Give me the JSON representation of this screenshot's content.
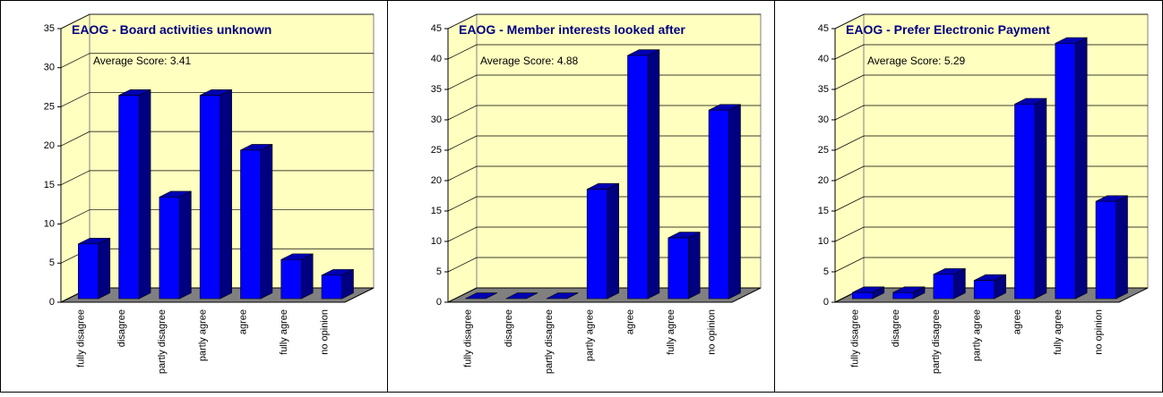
{
  "chart_data": [
    {
      "type": "bar",
      "title": "EAOG - Board activities unknown",
      "annotation": "Average Score: 3.41",
      "categories": [
        "fully disagree",
        "disagree",
        "partly disagree",
        "partly agree",
        "agree",
        "fully agree",
        "no opinion"
      ],
      "values": [
        7,
        26,
        13,
        26,
        19,
        5,
        3
      ],
      "color": "#0000ff",
      "ylim": [
        0,
        35
      ],
      "yticks": [
        0,
        5,
        10,
        15,
        20,
        25,
        30,
        35
      ],
      "grid": true
    },
    {
      "type": "bar",
      "title": "EAOG - Member interests looked after",
      "annotation": "Average Score: 4.88",
      "categories": [
        "fully disagree",
        "disagree",
        "partly disagree",
        "partly agree",
        "agree",
        "fully agree",
        "no opinion"
      ],
      "values": [
        0,
        0,
        0,
        18,
        40,
        10,
        31
      ],
      "color": "#0000ff",
      "ylim": [
        0,
        45
      ],
      "yticks": [
        0,
        5,
        10,
        15,
        20,
        25,
        30,
        35,
        40,
        45
      ],
      "grid": true
    },
    {
      "type": "bar",
      "title": "EAOG - Prefer Electronic Payment",
      "annotation": "Average Score: 5.29",
      "categories": [
        "fully disagree",
        "disagree",
        "partly disagree",
        "partly agree",
        "agree",
        "fully agree",
        "no opinion"
      ],
      "values": [
        1,
        1,
        4,
        3,
        32,
        42,
        16
      ],
      "color": "#0000ff",
      "ylim": [
        0,
        45
      ],
      "yticks": [
        0,
        5,
        10,
        15,
        20,
        25,
        30,
        35,
        40,
        45
      ],
      "grid": true
    }
  ]
}
